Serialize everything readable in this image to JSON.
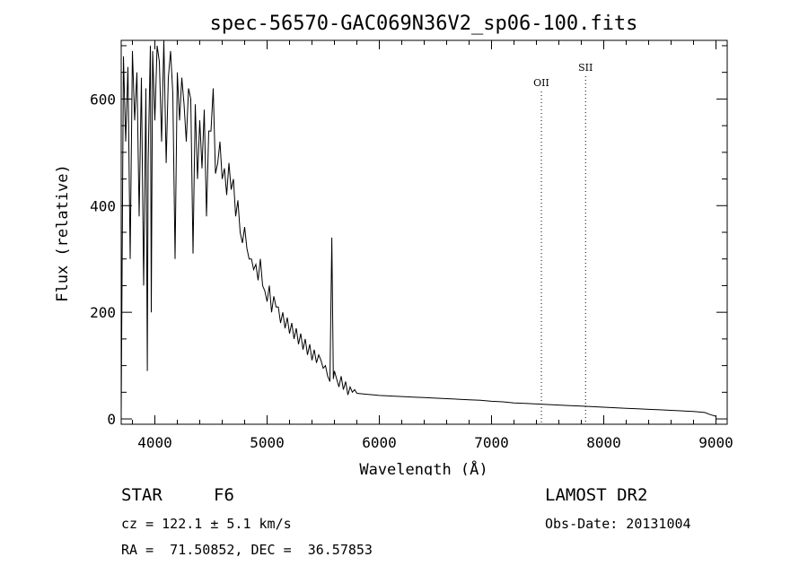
{
  "chart_data": {
    "type": "line",
    "title": "spec-56570-GAC069N36V2_sp06-100.fits",
    "xlabel": "Wavelength (Å)",
    "ylabel": "Flux (relative)",
    "xlim": [
      3700,
      9100
    ],
    "ylim": [
      -10,
      710
    ],
    "xticks": [
      4000,
      5000,
      6000,
      7000,
      8000,
      9000
    ],
    "yticks": [
      0,
      200,
      400,
      600
    ],
    "grid": false,
    "line_color": "#000000",
    "series": [
      {
        "name": "flux",
        "x": [
          3700,
          3720,
          3740,
          3760,
          3780,
          3800,
          3820,
          3840,
          3860,
          3880,
          3900,
          3920,
          3933,
          3940,
          3960,
          3968,
          3980,
          4000,
          4020,
          4040,
          4060,
          4080,
          4101,
          4120,
          4140,
          4160,
          4180,
          4200,
          4220,
          4240,
          4260,
          4280,
          4300,
          4320,
          4340,
          4360,
          4380,
          4400,
          4420,
          4440,
          4460,
          4480,
          4500,
          4520,
          4540,
          4560,
          4580,
          4600,
          4620,
          4640,
          4660,
          4680,
          4700,
          4720,
          4740,
          4760,
          4780,
          4800,
          4820,
          4840,
          4861,
          4880,
          4900,
          4920,
          4940,
          4960,
          4980,
          5000,
          5020,
          5040,
          5060,
          5080,
          5100,
          5120,
          5140,
          5160,
          5180,
          5200,
          5220,
          5240,
          5260,
          5280,
          5300,
          5320,
          5340,
          5360,
          5380,
          5400,
          5420,
          5440,
          5460,
          5480,
          5500,
          5520,
          5540,
          5560,
          5577,
          5590,
          5600,
          5620,
          5640,
          5660,
          5680,
          5700,
          5720,
          5740,
          5760,
          5780,
          5800,
          5850,
          5900,
          5950,
          6000,
          6100,
          6200,
          6300,
          6400,
          6500,
          6600,
          6700,
          6800,
          6900,
          7000,
          7100,
          7200,
          7300,
          7400,
          7500,
          7600,
          7700,
          7800,
          7900,
          8000,
          8100,
          8200,
          8300,
          8400,
          8500,
          8600,
          8700,
          8800,
          8900,
          8950,
          9000
        ],
        "values": [
          10,
          680,
          520,
          660,
          300,
          690,
          560,
          650,
          380,
          640,
          250,
          620,
          90,
          480,
          700,
          200,
          690,
          560,
          700,
          670,
          520,
          710,
          480,
          640,
          690,
          610,
          300,
          650,
          560,
          640,
          590,
          520,
          620,
          600,
          310,
          590,
          450,
          560,
          470,
          580,
          380,
          540,
          540,
          620,
          460,
          480,
          520,
          450,
          470,
          420,
          480,
          430,
          450,
          380,
          410,
          350,
          330,
          360,
          320,
          300,
          300,
          280,
          290,
          260,
          300,
          250,
          240,
          220,
          250,
          200,
          230,
          210,
          210,
          180,
          200,
          170,
          190,
          160,
          180,
          150,
          170,
          140,
          160,
          130,
          150,
          120,
          140,
          110,
          130,
          105,
          120,
          110,
          95,
          100,
          80,
          70,
          340,
          75,
          90,
          75,
          60,
          80,
          55,
          70,
          45,
          60,
          50,
          55,
          48,
          47,
          46,
          45,
          44,
          43,
          42,
          41,
          40,
          39,
          38,
          37,
          36,
          35,
          33,
          32,
          30,
          29,
          28,
          27,
          26,
          25,
          24,
          23,
          22,
          21,
          20,
          19,
          18,
          17,
          16,
          15,
          14,
          12,
          8,
          5
        ]
      }
    ],
    "lines": [
      {
        "label": "OII",
        "x": 7444
      },
      {
        "label": "SII",
        "x": 7838
      }
    ]
  },
  "info": {
    "class": "STAR",
    "subclass": "F6",
    "survey": "LAMOST DR2",
    "cz": "cz = 122.1 ± 5.1 km/s",
    "obs_date": "Obs-Date: 20131004",
    "coords": "RA =  71.50852, DEC =  36.57853"
  }
}
